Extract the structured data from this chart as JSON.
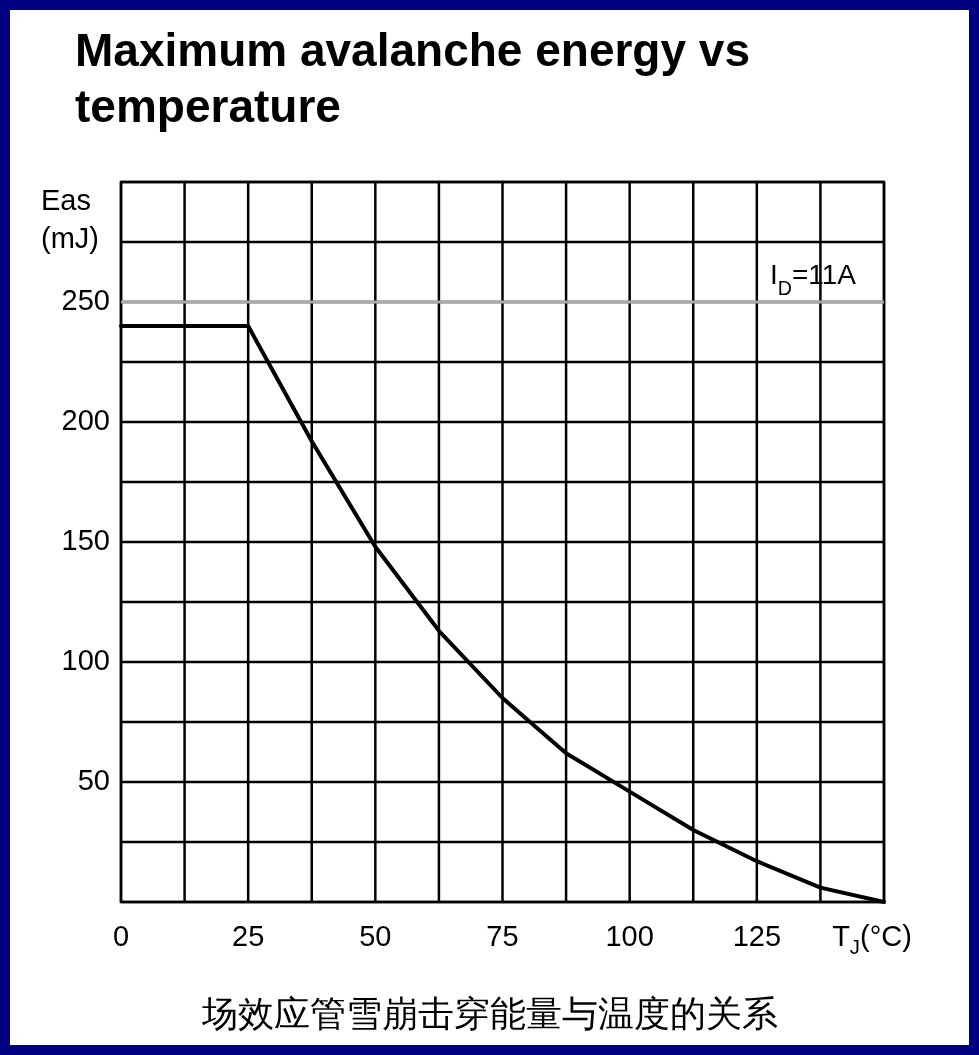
{
  "chart_data": {
    "type": "line",
    "title": "Maximum avalanche energy vs temperature",
    "xlabel": "T$_{J}$(°C)",
    "ylabel": "Eas (mJ)",
    "annotations": [
      "I$_{D}$=11A",
      "场效应管雪崩击穿能量与温度的关系"
    ],
    "xlim": [
      0,
      150
    ],
    "ylim": [
      0,
      300
    ],
    "xticks": [
      0,
      {
        "value": 12.5,
        "label": null
      },
      25,
      {
        "value": 37.5,
        "label": null
      },
      50,
      {
        "value": 62.5,
        "label": null
      },
      75,
      {
        "value": 87.5,
        "label": null
      },
      100,
      {
        "value": 112.5,
        "label": null
      },
      125,
      {
        "value": 137.5,
        "label": null
      },
      {
        "value": 150,
        "label": null
      }
    ],
    "yticks": [
      {
        "value": 0,
        "label": null
      },
      {
        "value": 25,
        "label": null
      },
      50,
      {
        "value": 75,
        "label": null
      },
      100,
      {
        "value": 125,
        "label": null
      },
      150,
      {
        "value": 175,
        "label": null
      },
      200,
      {
        "value": 225,
        "label": null
      },
      250,
      {
        "value": 275,
        "label": null
      },
      {
        "value": 300,
        "label": null
      }
    ],
    "grid": true,
    "ref_lines": [
      {
        "axis": "y",
        "value": 250,
        "color": "#aaaaaa"
      }
    ],
    "series": [
      {
        "color": "#000000",
        "x": [
          0,
          25,
          37.5,
          50,
          62.5,
          75,
          87.5,
          100,
          112.5,
          125,
          137.5,
          150
        ],
        "values": [
          240,
          240,
          192,
          148,
          113,
          85,
          62,
          46,
          30,
          17,
          6,
          0
        ]
      }
    ]
  }
}
